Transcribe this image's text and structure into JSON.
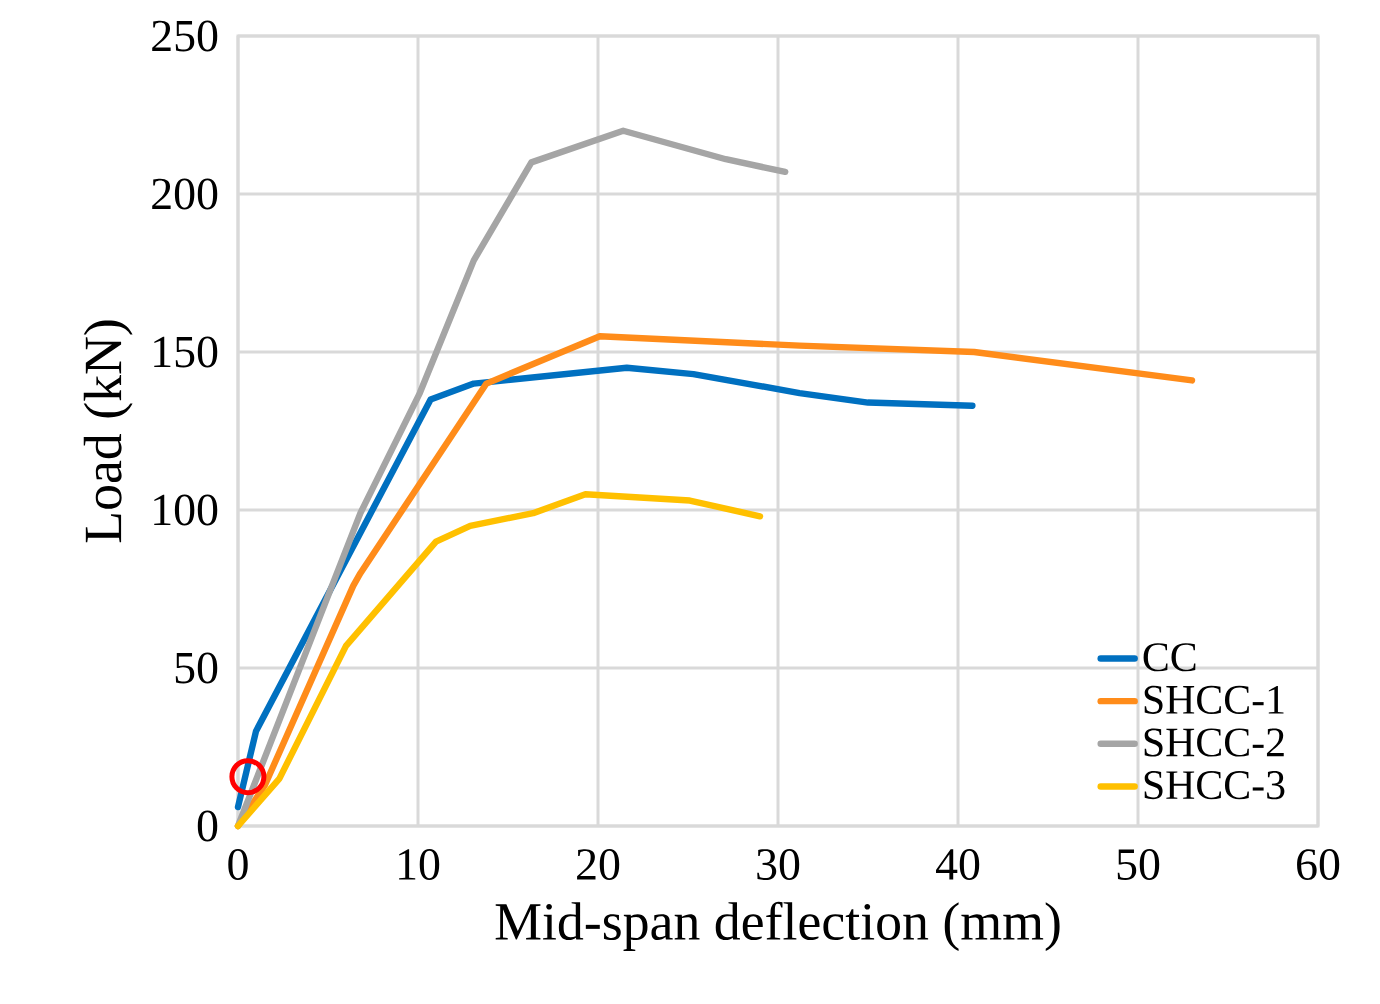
{
  "chart_data": {
    "type": "line",
    "xlabel": "Mid-span deflection (mm)",
    "ylabel": "Load (kN)",
    "xlim": [
      0,
      60
    ],
    "xticks": [
      0,
      10,
      20,
      30,
      40,
      50,
      60
    ],
    "ylim": [
      0,
      250
    ],
    "yticks": [
      0,
      50,
      100,
      150,
      200,
      250
    ],
    "grid": true,
    "legend": "bottom right",
    "series": [
      {
        "name": "CC",
        "color": "#0070c0",
        "x": [
          0,
          1.0,
          10.7,
          13.1,
          21.6,
          25.3,
          31.2,
          35,
          40.8
        ],
        "values": [
          6,
          30,
          135,
          140,
          145,
          143,
          137,
          134,
          133
        ]
      },
      {
        "name": "SHCC-1",
        "color": "#ff8c1a",
        "x": [
          0,
          1.5,
          6.4,
          6.8,
          13.8,
          20.1,
          31.2,
          40.9,
          53.0
        ],
        "values": [
          0,
          13,
          76,
          80,
          140,
          155,
          152,
          150,
          141
        ]
      },
      {
        "name": "SHCC-2",
        "color": "#a5a5a5",
        "x": [
          0,
          6.8,
          10.1,
          13.1,
          16.3,
          21.4,
          27.1,
          30.4
        ],
        "values": [
          0,
          99,
          137,
          179,
          210,
          220,
          211,
          207
        ]
      },
      {
        "name": "SHCC-3",
        "color": "#ffc000",
        "x": [
          0,
          2.3,
          6.0,
          11.0,
          12.9,
          16.4,
          19.3,
          25.1,
          29.0
        ],
        "values": [
          0,
          15,
          57,
          90,
          95,
          99,
          105,
          103,
          98
        ]
      },
      {
        "type": "scatter",
        "marker": "circle",
        "color": "#ff0000",
        "x": [
          0.55
        ],
        "values": [
          15.6
        ]
      }
    ]
  }
}
